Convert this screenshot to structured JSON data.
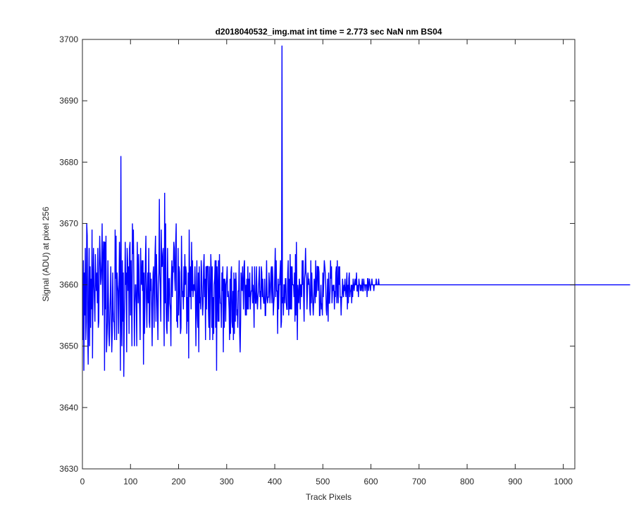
{
  "chart_data": {
    "type": "line",
    "title": "d2018040532_img.mat int time = 2.773 sec  NaN nm BS04",
    "xlabel": "Track Pixels",
    "ylabel": "Signal (ADU) at pixel 256",
    "xlim": [
      0,
      1024
    ],
    "ylim": [
      3630,
      3700
    ],
    "xticks": [
      0,
      100,
      200,
      300,
      400,
      500,
      600,
      700,
      800,
      900,
      1000
    ],
    "yticks": [
      3630,
      3640,
      3650,
      3660,
      3670,
      3680,
      3690,
      3700
    ],
    "grid": false,
    "line_color": "#0000ff",
    "series": [
      {
        "x_start": 1,
        "x_step": 1,
        "values": [
          3651,
          3664,
          3646,
          3662,
          3655,
          3666,
          3651,
          3654,
          3670,
          3668,
          3652,
          3647,
          3660,
          3666,
          3650,
          3663,
          3653,
          3661,
          3656,
          3669,
          3648,
          3660,
          3666,
          3660,
          3657,
          3654,
          3665,
          3661,
          3659,
          3662,
          3657,
          3666,
          3653,
          3654,
          3663,
          3668,
          3664,
          3660,
          3661,
          3664,
          3670,
          3655,
          3664,
          3667,
          3667,
          3646,
          3667,
          3656,
          3668,
          3649,
          3651,
          3654,
          3664,
          3658,
          3652,
          3650,
          3655,
          3658,
          3663,
          3655,
          3649,
          3652,
          3662,
          3656,
          3654,
          3654,
          3651,
          3669,
          3661,
          3668,
          3651,
          3662,
          3660,
          3659,
          3652,
          3659,
          3667,
          3661,
          3646,
          3681,
          3655,
          3650,
          3664,
          3654,
          3662,
          3645,
          3654,
          3658,
          3667,
          3660,
          3662,
          3649,
          3666,
          3664,
          3659,
          3663,
          3652,
          3666,
          3667,
          3655,
          3664,
          3658,
          3650,
          3670,
          3665,
          3669,
          3661,
          3650,
          3656,
          3660,
          3660,
          3657,
          3650,
          3667,
          3662,
          3657,
          3665,
          3659,
          3656,
          3651,
          3666,
          3661,
          3660,
          3664,
          3659,
          3664,
          3647,
          3662,
          3652,
          3657,
          3664,
          3668,
          3658,
          3653,
          3659,
          3662,
          3657,
          3666,
          3654,
          3653,
          3662,
          3659,
          3661,
          3656,
          3650,
          3658,
          3662,
          3663,
          3653,
          3660,
          3665,
          3668,
          3654,
          3665,
          3660,
          3656,
          3651,
          3660,
          3662,
          3674,
          3662,
          3659,
          3654,
          3669,
          3663,
          3663,
          3665,
          3666,
          3658,
          3650,
          3675,
          3657,
          3670,
          3657,
          3653,
          3652,
          3666,
          3659,
          3654,
          3661,
          3661,
          3657,
          3656,
          3650,
          3661,
          3664,
          3658,
          3663,
          3662,
          3667,
          3666,
          3661,
          3659,
          3667,
          3670,
          3654,
          3655,
          3653,
          3666,
          3655,
          3663,
          3662,
          3656,
          3652,
          3653,
          3668,
          3661,
          3658,
          3659,
          3656,
          3663,
          3658,
          3665,
          3660,
          3663,
          3662,
          3652,
          3658,
          3654,
          3662,
          3648,
          3669,
          3661,
          3658,
          3663,
          3656,
          3667,
          3659,
          3664,
          3658,
          3660,
          3660,
          3659,
          3663,
          3658,
          3650,
          3658,
          3664,
          3655,
          3653,
          3662,
          3649,
          3663,
          3657,
          3658,
          3656,
          3664,
          3662,
          3658,
          3655,
          3657,
          3663,
          3665,
          3658,
          3661,
          3651,
          3663,
          3656,
          3663,
          3663,
          3663,
          3656,
          3653,
          3663,
          3651,
          3658,
          3665,
          3662,
          3653,
          3663,
          3651,
          3658,
          3652,
          3660,
          3661,
          3664,
          3653,
          3664,
          3646,
          3663,
          3659,
          3654,
          3664,
          3654,
          3665,
          3659,
          3657,
          3657,
          3653,
          3662,
          3659,
          3663,
          3649,
          3661,
          3653,
          3661,
          3660,
          3654,
          3660,
          3661,
          3663,
          3658,
          3659,
          3658,
          3656,
          3651,
          3661,
          3652,
          3662,
          3663,
          3654,
          3653,
          3659,
          3651,
          3662,
          3652,
          3661,
          3654,
          3662,
          3660,
          3655,
          3656,
          3653,
          3659,
          3659,
          3664,
          3652,
          3649,
          3654,
          3662,
          3660,
          3659,
          3663,
          3660,
          3656,
          3663,
          3664,
          3659,
          3655,
          3660,
          3655,
          3661,
          3656,
          3663,
          3656,
          3661,
          3658,
          3662,
          3656,
          3658,
          3659,
          3659,
          3663,
          3657,
          3660,
          3658,
          3653,
          3663,
          3659,
          3657,
          3657,
          3663,
          3658,
          3656,
          3658,
          3659,
          3661,
          3663,
          3658,
          3659,
          3656,
          3663,
          3662,
          3658,
          3661,
          3658,
          3657,
          3657,
          3661,
          3655,
          3655,
          3659,
          3664,
          3658,
          3657,
          3658,
          3658,
          3662,
          3660,
          3657,
          3659,
          3662,
          3663,
          3657,
          3663,
          3661,
          3655,
          3657,
          3658,
          3662,
          3666,
          3658,
          3664,
          3659,
          3659,
          3652,
          3661,
          3656,
          3660,
          3660,
          3662,
          3664,
          3653,
          3654,
          3699,
          3657,
          3658,
          3655,
          3660,
          3660,
          3657,
          3661,
          3661,
          3657,
          3656,
          3656,
          3662,
          3664,
          3655,
          3661,
          3656,
          3665,
          3656,
          3663,
          3656,
          3663,
          3660,
          3660,
          3660,
          3658,
          3662,
          3654,
          3665,
          3655,
          3667,
          3658,
          3651,
          3660,
          3658,
          3657,
          3661,
          3660,
          3656,
          3660,
          3660,
          3658,
          3664,
          3660,
          3664,
          3658,
          3654,
          3661,
          3662,
          3666,
          3662,
          3661,
          3656,
          3659,
          3662,
          3660,
          3661,
          3660,
          3656,
          3655,
          3664,
          3657,
          3662,
          3659,
          3657,
          3655,
          3657,
          3661,
          3660,
          3657,
          3664,
          3658,
          3659,
          3663,
          3663,
          3659,
          3663,
          3662,
          3655,
          3655,
          3658,
          3660,
          3656,
          3657,
          3655,
          3662,
          3658,
          3661,
          3664,
          3663,
          3662,
          3660,
          3656,
          3655,
          3658,
          3661,
          3654,
          3662,
          3657,
          3657,
          3659,
          3664,
          3661,
          3663,
          3657,
          3659,
          3660,
          3659,
          3660,
          3656,
          3659,
          3658,
          3662,
          3663,
          3657,
          3664,
          3659,
          3657,
          3663,
          3660,
          3663,
          3658,
          3658,
          3655,
          3658,
          3658,
          3661,
          3659,
          3658,
          3660,
          3659,
          3661,
          3659,
          3658,
          3660,
          3662,
          3656,
          3660,
          3657,
          3661,
          3662,
          3658,
          3659,
          3659,
          3660,
          3657,
          3660,
          3658,
          3661,
          3660,
          3659,
          3660,
          3661,
          3660,
          3660,
          3662,
          3659,
          3659,
          3660,
          3658,
          3661,
          3660,
          3660,
          3659,
          3660,
          3659,
          3660,
          3661,
          3659,
          3659,
          3661,
          3660,
          3660,
          3659,
          3660,
          3660,
          3660,
          3658,
          3661,
          3661,
          3659,
          3660,
          3661,
          3660,
          3659,
          3660,
          3660,
          3661,
          3660,
          3660,
          3660,
          3659,
          3660,
          3660,
          3660,
          3660,
          3661,
          3660,
          3660,
          3660,
          3660,
          3661,
          3660,
          3660,
          3660,
          3660,
          3660,
          3660,
          3660,
          3660,
          3660,
          3660,
          3660,
          3660,
          3660,
          3660,
          3660,
          3660,
          3660,
          3660,
          3660,
          3660,
          3660,
          3660,
          3660,
          3660,
          3660,
          3660,
          3660,
          3660,
          3660,
          3660,
          3660,
          3660,
          3660,
          3660,
          3660,
          3660,
          3660,
          3660,
          3660,
          3660,
          3660,
          3660,
          3660,
          3660,
          3660,
          3660,
          3660,
          3660,
          3660,
          3660,
          3660,
          3660,
          3660,
          3660,
          3660,
          3660,
          3660,
          3660,
          3660,
          3660,
          3660,
          3660,
          3660,
          3660,
          3660,
          3660,
          3660,
          3660,
          3660,
          3660,
          3660,
          3660,
          3660,
          3660,
          3660,
          3660,
          3660,
          3660,
          3660,
          3660,
          3660,
          3660,
          3660,
          3660,
          3660,
          3660,
          3660,
          3660,
          3660,
          3660,
          3660,
          3660,
          3660,
          3660,
          3660,
          3660,
          3660,
          3660,
          3660,
          3660,
          3660,
          3660,
          3660,
          3660,
          3660,
          3660,
          3660,
          3660,
          3660,
          3660,
          3660,
          3660,
          3660,
          3660,
          3660,
          3660,
          3660,
          3660,
          3660,
          3660,
          3660,
          3660,
          3660,
          3660,
          3660,
          3660,
          3660,
          3660,
          3660,
          3660,
          3660,
          3660,
          3660,
          3660,
          3660,
          3660,
          3660,
          3660,
          3660,
          3660,
          3660,
          3660,
          3660,
          3660,
          3660,
          3660,
          3660,
          3660,
          3660,
          3660,
          3660,
          3660,
          3660,
          3660,
          3660,
          3660,
          3660,
          3660,
          3660,
          3660,
          3660,
          3660,
          3660,
          3660,
          3660,
          3660,
          3660,
          3660,
          3660,
          3660,
          3660,
          3660,
          3660,
          3660,
          3660,
          3660,
          3660,
          3660,
          3660,
          3660,
          3660,
          3660,
          3660,
          3660,
          3660,
          3660,
          3660,
          3660,
          3660,
          3660,
          3660,
          3660,
          3660,
          3660,
          3660,
          3660,
          3660,
          3660,
          3660,
          3660,
          3660,
          3660,
          3660,
          3660,
          3660,
          3660,
          3660,
          3660,
          3660,
          3660,
          3660,
          3660,
          3660,
          3660,
          3660,
          3660,
          3660,
          3660,
          3660,
          3660,
          3660,
          3660,
          3660,
          3660,
          3660,
          3660,
          3660,
          3660,
          3660,
          3660,
          3660,
          3660,
          3660,
          3660,
          3660,
          3660,
          3660,
          3660,
          3660,
          3660,
          3660,
          3660,
          3660,
          3660,
          3660,
          3660,
          3660,
          3660,
          3660,
          3660,
          3660,
          3660,
          3660,
          3660,
          3660,
          3660,
          3660,
          3660,
          3660,
          3660,
          3660,
          3660,
          3660,
          3660,
          3660,
          3660,
          3660,
          3660,
          3660,
          3660,
          3660,
          3660,
          3660,
          3660,
          3660,
          3660,
          3660,
          3660,
          3660,
          3660,
          3660,
          3660,
          3660,
          3660,
          3660,
          3660,
          3660,
          3660,
          3660,
          3660,
          3660,
          3660,
          3660,
          3660,
          3660,
          3660,
          3660,
          3660,
          3660,
          3660,
          3660,
          3660,
          3660,
          3660,
          3660,
          3660,
          3660,
          3660,
          3660,
          3660,
          3660,
          3660,
          3660,
          3660,
          3660,
          3660,
          3660,
          3660,
          3660,
          3660,
          3660,
          3660,
          3660,
          3660,
          3660,
          3660,
          3660,
          3660,
          3660,
          3660,
          3660,
          3660,
          3660,
          3660,
          3660,
          3660,
          3660,
          3660,
          3660,
          3660,
          3660,
          3660,
          3660,
          3660,
          3660,
          3660,
          3660,
          3660,
          3660,
          3660,
          3660,
          3660,
          3660,
          3660,
          3660,
          3660,
          3660,
          3660,
          3660,
          3660,
          3660,
          3660,
          3660,
          3660,
          3660,
          3660,
          3660,
          3660,
          3660,
          3660,
          3660,
          3660,
          3660,
          3660,
          3660,
          3660,
          3660,
          3660,
          3660,
          3660,
          3660,
          3660,
          3660,
          3660,
          3660,
          3660,
          3660,
          3660,
          3660,
          3660,
          3660,
          3660,
          3660,
          3660,
          3660,
          3660,
          3660,
          3660,
          3660,
          3660,
          3660,
          3660,
          3660,
          3660,
          3660,
          3660,
          3660,
          3660,
          3660,
          3660,
          3660,
          3660,
          3660,
          3660,
          3660,
          3660,
          3660,
          3660,
          3660,
          3660,
          3660,
          3660,
          3660,
          3660,
          3660,
          3660,
          3660,
          3660,
          3660,
          3660,
          3660,
          3660,
          3660,
          3660,
          3660,
          3660,
          3660,
          3660,
          3660,
          3660,
          3660,
          3660,
          3660,
          3660,
          3660,
          3660,
          3660,
          3660,
          3660,
          3660,
          3660,
          3660,
          3660,
          3660,
          3660,
          3660,
          3660,
          3660,
          3660,
          3660,
          3660,
          3660,
          3660,
          3660,
          3660,
          3660,
          3660,
          3660,
          3660,
          3660,
          3660,
          3660,
          3660,
          3660,
          3660,
          3660,
          3660,
          3660,
          3660,
          3660,
          3660,
          3660,
          3660,
          3660,
          3660,
          3660,
          3660,
          3660,
          3660,
          3660,
          3660,
          3660,
          3660,
          3660,
          3660,
          3660,
          3660,
          3660,
          3660,
          3660,
          3660,
          3660,
          3660,
          3660,
          3660,
          3660,
          3660,
          3660,
          3660,
          3660,
          3660,
          3660,
          3660,
          3660,
          3660,
          3660,
          3660,
          3660,
          3660,
          3660,
          3660,
          3660,
          3660
        ]
      }
    ]
  }
}
